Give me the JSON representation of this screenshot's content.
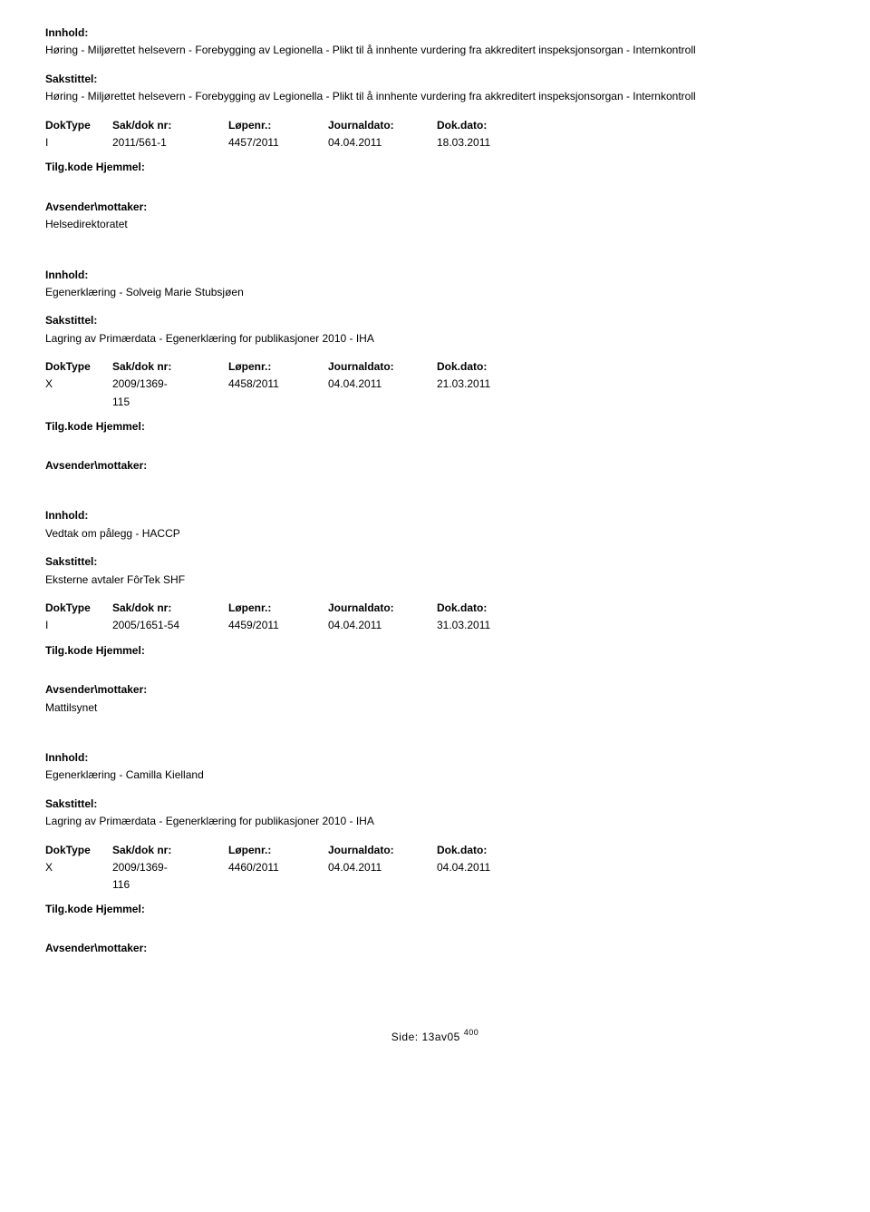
{
  "labels": {
    "innhold": "Innhold:",
    "sakstittel": "Sakstittel:",
    "doctype": "DokType",
    "sakdok": "Sak/dok nr:",
    "lopenr": "Løpenr.:",
    "journaldato": "Journaldato:",
    "dokdato": "Dok.dato:",
    "tilgkode": "Tilg.kode",
    "hjemmel": "Hjemmel:",
    "avsender": "Avsender\\mottaker:"
  },
  "entries": [
    {
      "innhold": "Høring - Miljørettet helsevern - Forebygging av Legionella - Plikt til å innhente vurdering fra akkreditert inspeksjonsorgan - Internkontroll",
      "sakstittel": "Høring - Miljørettet helsevern - Forebygging av Legionella - Plikt til å innhente vurdering fra akkreditert inspeksjonsorgan - Internkontroll",
      "doctype": "I",
      "sakdok": "2011/561-1",
      "sakdok2": "",
      "lopenr": "4457/2011",
      "journaldato": "04.04.2011",
      "dokdato": "18.03.2011",
      "avsender": "Helsedirektoratet"
    },
    {
      "innhold": "Egenerklæring - Solveig Marie Stubsjøen",
      "sakstittel": "Lagring av Primærdata - Egenerklæring for publikasjoner 2010 - IHA",
      "doctype": "X",
      "sakdok": "2009/1369-",
      "sakdok2": "115",
      "lopenr": "4458/2011",
      "journaldato": "04.04.2011",
      "dokdato": "21.03.2011",
      "avsender": ""
    },
    {
      "innhold": "Vedtak om pålegg - HACCP",
      "sakstittel": "Eksterne avtaler FôrTek SHF",
      "doctype": "I",
      "sakdok": "2005/1651-54",
      "sakdok2": "",
      "lopenr": "4459/2011",
      "journaldato": "04.04.2011",
      "dokdato": "31.03.2011",
      "avsender": "Mattilsynet"
    },
    {
      "innhold": "Egenerklæring - Camilla Kielland",
      "sakstittel": "Lagring av Primærdata - Egenerklæring for publikasjoner 2010 - IHA",
      "doctype": "X",
      "sakdok": "2009/1369-",
      "sakdok2": "116",
      "lopenr": "4460/2011",
      "journaldato": "04.04.2011",
      "dokdato": "04.04.2011",
      "avsender": ""
    }
  ],
  "footer": {
    "prefix": "Side:",
    "pagenum": "13",
    "overlay": "av05",
    "super": "400"
  }
}
